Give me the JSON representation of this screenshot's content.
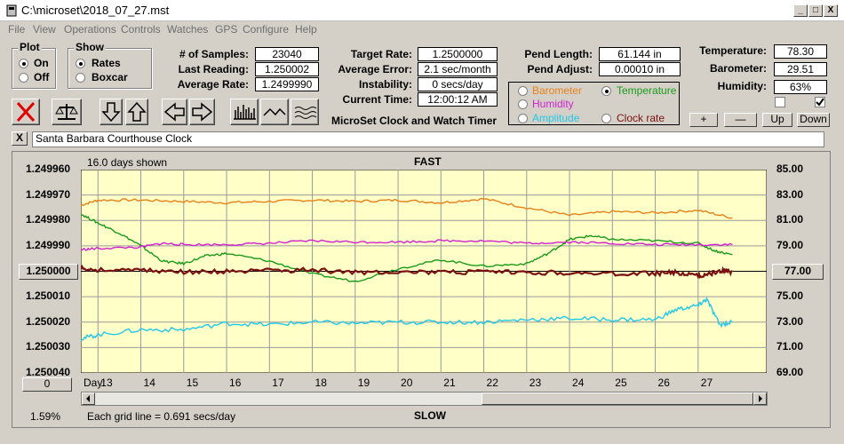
{
  "window": {
    "title": "C:\\microset\\2018_07_27.mst",
    "controls": [
      "_",
      "□",
      "X"
    ]
  },
  "menu": [
    "File",
    "View",
    "Operations",
    "Controls",
    "Watches",
    "GPS",
    "Configure",
    "Help"
  ],
  "plot_group": {
    "title": "Plot",
    "options": [
      "On",
      "Off"
    ],
    "selected": "On"
  },
  "show_group": {
    "title": "Show",
    "options": [
      "Rates",
      "Boxcar"
    ],
    "selected": "Rates"
  },
  "stats": {
    "samples_label": "# of Samples:",
    "samples": "23040",
    "last_reading_label": "Last Reading:",
    "last_reading": "1.250002",
    "average_rate_label": "Average Rate:",
    "average_rate": "1.2499990",
    "target_rate_label": "Target Rate:",
    "target_rate": "1.2500000",
    "average_error_label": "Average Error:",
    "average_error": "2.1 sec/month",
    "instability_label": "Instability:",
    "instability": "0 secs/day",
    "current_time_label": "Current Time:",
    "current_time": "12:00:12 AM",
    "app_caption": "MicroSet Clock and Watch Timer",
    "pend_length_label": "Pend Length:",
    "pend_length": "61.144 in",
    "pend_adjust_label": "Pend Adjust:",
    "pend_adjust": "0.00010 in",
    "temperature_label": "Temperature:",
    "temperature": "78.30",
    "barometer_label": "Barometer:",
    "barometer": "29.51",
    "humidity_label": "Humidity:",
    "humidity": "63%"
  },
  "aux_options": {
    "items": [
      {
        "label": "Barometer",
        "color": "#e8801a",
        "selected": false
      },
      {
        "label": "Temperature",
        "color": "#1a9a1a",
        "selected": true
      },
      {
        "label": "Humidity",
        "color": "#d020d0",
        "selected": false
      },
      {
        "label": "Amplitude",
        "color": "#20c8e8",
        "selected": false
      },
      {
        "label": "Clock rate",
        "color": "#7a1010",
        "selected": false
      }
    ]
  },
  "adjust_buttons": [
    "+",
    "—",
    "Up",
    "Down"
  ],
  "checkboxes": [
    false,
    true
  ],
  "toolbar": [
    "clear-icon",
    "balance-scale-icon",
    "arrow-down-icon",
    "arrow-up-icon",
    "arrow-left-icon",
    "arrow-right-icon",
    "bars-icon",
    "wave-icon",
    "boxcar-icon"
  ],
  "description": {
    "close": "X",
    "text": "Santa Barbara Courthouse Clock"
  },
  "plot": {
    "days_shown": "16.0 days shown",
    "fast_label": "FAST",
    "slow_label": "SLOW",
    "day_label": "Day:",
    "grid_note": "Each grid line = 0.691 secs/day",
    "percent": "1.59%",
    "left_button": "0",
    "center_button": "1.250000",
    "right_button": "77.00"
  },
  "chart_data": {
    "type": "line",
    "x_label": "Day:",
    "x_ticks": [
      13,
      14,
      15,
      16,
      17,
      18,
      19,
      20,
      21,
      22,
      23,
      24,
      25,
      26,
      27
    ],
    "x_range": [
      12.6,
      28.6
    ],
    "y_left_ticks": [
      "1.249960",
      "1.249970",
      "1.249980",
      "1.249990",
      "1.250000",
      "1.250010",
      "1.250020",
      "1.250030",
      "1.250040"
    ],
    "y_left_range": [
      1.24996,
      1.25004
    ],
    "y_right_ticks": [
      "85.00",
      "83.00",
      "81.00",
      "79.00",
      "77.00",
      "75.00",
      "73.00",
      "71.00",
      "69.00"
    ],
    "y_right_range": [
      85,
      69
    ],
    "background": "#ffffc8",
    "series": [
      {
        "name": "Barometer",
        "color": "#e8801a",
        "x": [
          12.6,
          13,
          14,
          15,
          16,
          17,
          18,
          19,
          20,
          21,
          22,
          23,
          24,
          25,
          26,
          27,
          27.8
        ],
        "y": [
          82.2,
          82.6,
          82.6,
          82.5,
          82.4,
          82.5,
          82.6,
          82.5,
          82.6,
          82.4,
          82.7,
          82.0,
          81.4,
          81.7,
          81.6,
          81.8,
          81.2
        ]
      },
      {
        "name": "Temperature",
        "color": "#1a9a1a",
        "x": [
          12.6,
          13,
          13.5,
          14,
          14.5,
          15,
          15.5,
          16,
          17,
          18,
          19,
          20,
          21,
          22,
          23,
          23.5,
          24,
          24.5,
          25,
          26,
          27,
          27.4,
          27.8
        ],
        "y": [
          81.5,
          80.8,
          80.0,
          79.0,
          77.8,
          77.6,
          78.2,
          78.4,
          77.8,
          76.8,
          76.2,
          77.2,
          77.9,
          77.4,
          77.6,
          78.4,
          79.5,
          79.8,
          79.5,
          79.4,
          79.2,
          78.6,
          78.3
        ]
      },
      {
        "name": "Humidity",
        "color": "#d020d0",
        "x": [
          12.6,
          13,
          14,
          14.5,
          15,
          16,
          17,
          18,
          19,
          20,
          21,
          22,
          23,
          24,
          25,
          26,
          27,
          27.8
        ],
        "y": [
          78.7,
          78.8,
          78.9,
          79.2,
          79.1,
          79.1,
          79.2,
          79.4,
          79.3,
          79.3,
          79.4,
          79.4,
          79.2,
          79.3,
          79.2,
          79.1,
          79.1,
          79.1
        ]
      },
      {
        "name": "Amplitude",
        "color": "#20c8e8",
        "x": [
          12.6,
          13,
          14,
          15,
          16,
          17,
          18,
          19,
          20,
          21,
          22,
          23,
          24,
          25,
          26,
          26.5,
          27,
          27.2,
          27.5,
          27.8
        ],
        "y": [
          71.7,
          72.0,
          72.4,
          72.4,
          72.9,
          72.8,
          73.0,
          72.9,
          73.0,
          73.0,
          73.0,
          73.2,
          73.3,
          73.2,
          73.2,
          74.0,
          74.3,
          74.8,
          72.8,
          73.0
        ]
      },
      {
        "name": "Clock rate",
        "color": "#7a1010",
        "x": [
          12.6,
          13,
          14,
          15,
          16,
          17,
          18,
          19,
          20,
          21,
          22,
          23,
          24,
          25,
          26,
          26.5,
          27,
          27.3,
          27.6,
          27.8
        ],
        "y": [
          1.249999,
          1.2499995,
          1.2499995,
          1.2500003,
          1.2500002,
          1.2499998,
          1.2499995,
          1.2500005,
          1.25,
          1.2500005,
          1.2500003,
          1.2500005,
          1.2500006,
          1.250001,
          1.2500008,
          1.2500005,
          1.2500018,
          1.2500008,
          1.2499997,
          1.2500002
        ]
      }
    ]
  }
}
